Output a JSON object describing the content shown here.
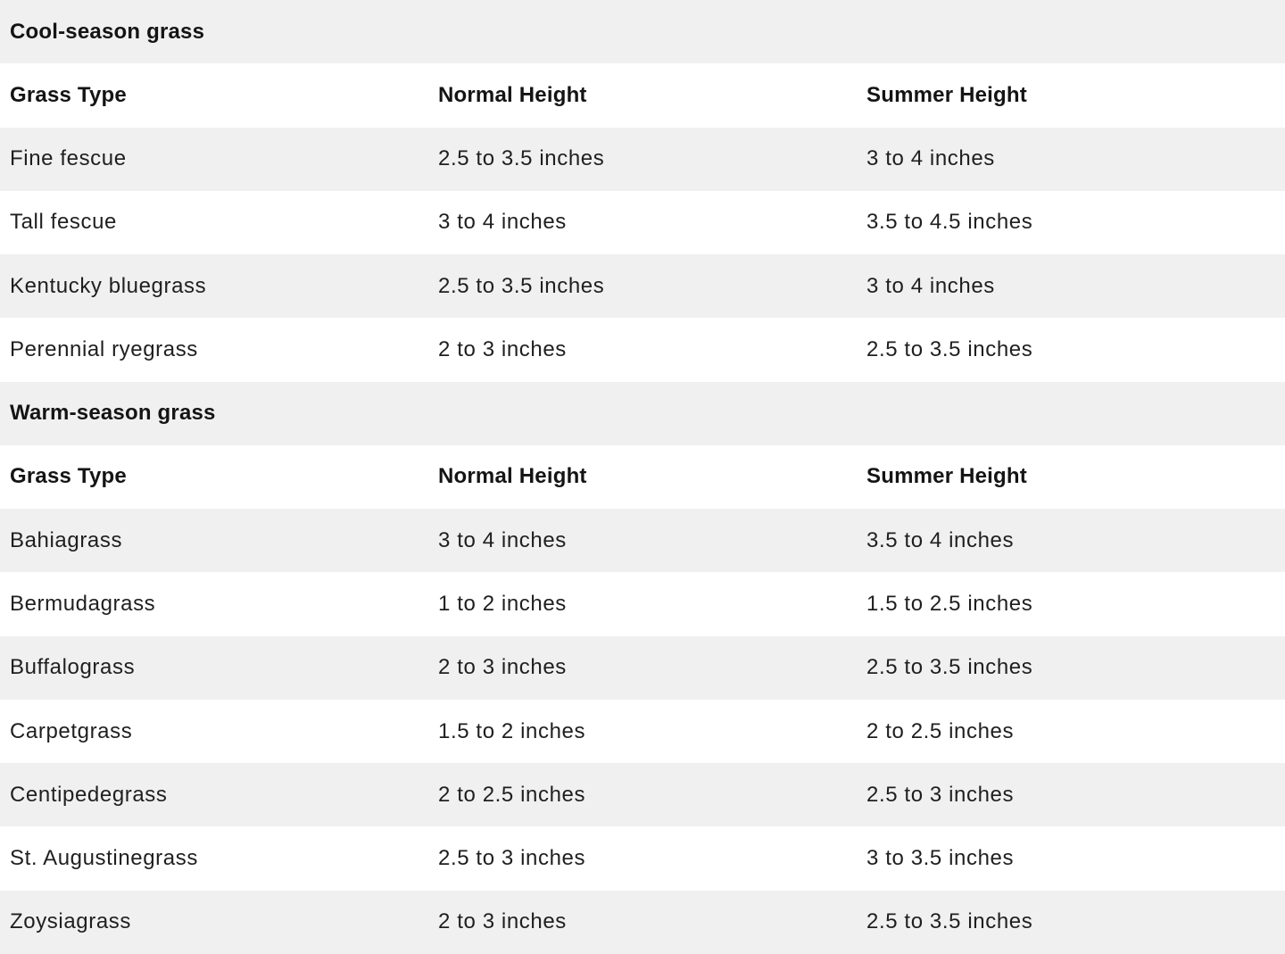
{
  "sections": [
    {
      "title": "Cool-season grass",
      "headers": [
        "Grass Type",
        "Normal Height",
        "Summer Height"
      ],
      "rows": [
        [
          "Fine fescue",
          "2.5 to 3.5 inches",
          "3 to 4 inches"
        ],
        [
          "Tall fescue",
          "3 to 4 inches",
          "3.5 to 4.5 inches"
        ],
        [
          "Kentucky bluegrass",
          "2.5 to 3.5 inches",
          "3 to 4 inches"
        ],
        [
          "Perennial ryegrass",
          "2 to 3 inches",
          "2.5 to 3.5 inches"
        ]
      ]
    },
    {
      "title": "Warm-season grass",
      "headers": [
        "Grass Type",
        "Normal Height",
        "Summer Height"
      ],
      "rows": [
        [
          "Bahiagrass",
          "3 to 4 inches",
          "3.5 to 4 inches"
        ],
        [
          "Bermudagrass",
          "1 to 2 inches",
          "1.5 to 2.5 inches"
        ],
        [
          "Buffalograss",
          "2 to 3 inches",
          "2.5 to 3.5 inches"
        ],
        [
          "Carpetgrass",
          "1.5 to 2 inches",
          "2 to 2.5 inches"
        ],
        [
          "Centipedegrass",
          "2 to 2.5 inches",
          "2.5 to 3 inches"
        ],
        [
          "St. Augustinegrass",
          "2.5 to 3 inches",
          "3 to 3.5 inches"
        ],
        [
          "Zoysiagrass",
          "2 to 3 inches",
          "2.5 to 3.5 inches"
        ]
      ]
    }
  ],
  "colors": {
    "stripe": "#f0f0f0",
    "background": "#ffffff",
    "text": "#1f1f1f"
  }
}
